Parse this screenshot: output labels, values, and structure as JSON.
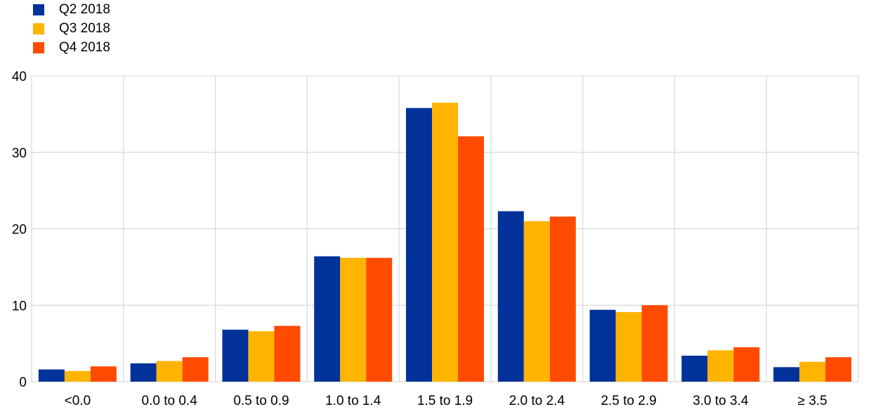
{
  "chart_data": {
    "type": "bar",
    "title": "",
    "xlabel": "",
    "ylabel": "",
    "categories": [
      "<0.0",
      "0.0 to 0.4",
      "0.5 to 0.9",
      "1.0 to 1.4",
      "1.5 to 1.9",
      "2.0 to 2.4",
      "2.5 to 2.9",
      "3.0 to 3.4",
      "≥ 3.5"
    ],
    "series": [
      {
        "name": "Q2 2018",
        "color": "#003299",
        "values": [
          1.6,
          2.4,
          6.8,
          16.4,
          35.8,
          22.3,
          9.4,
          3.4,
          1.9
        ]
      },
      {
        "name": "Q3 2018",
        "color": "#FFB400",
        "values": [
          1.4,
          2.7,
          6.6,
          16.2,
          36.5,
          21.0,
          9.1,
          4.1,
          2.6
        ]
      },
      {
        "name": "Q4 2018",
        "color": "#FF4B00",
        "values": [
          2.0,
          3.2,
          7.3,
          16.2,
          32.1,
          21.6,
          10.0,
          4.5,
          3.2
        ]
      }
    ],
    "ylim": [
      0,
      40
    ],
    "yticks": [
      "0",
      "10",
      "20",
      "30",
      "40"
    ],
    "grid": true,
    "legend_position": "top-left"
  }
}
